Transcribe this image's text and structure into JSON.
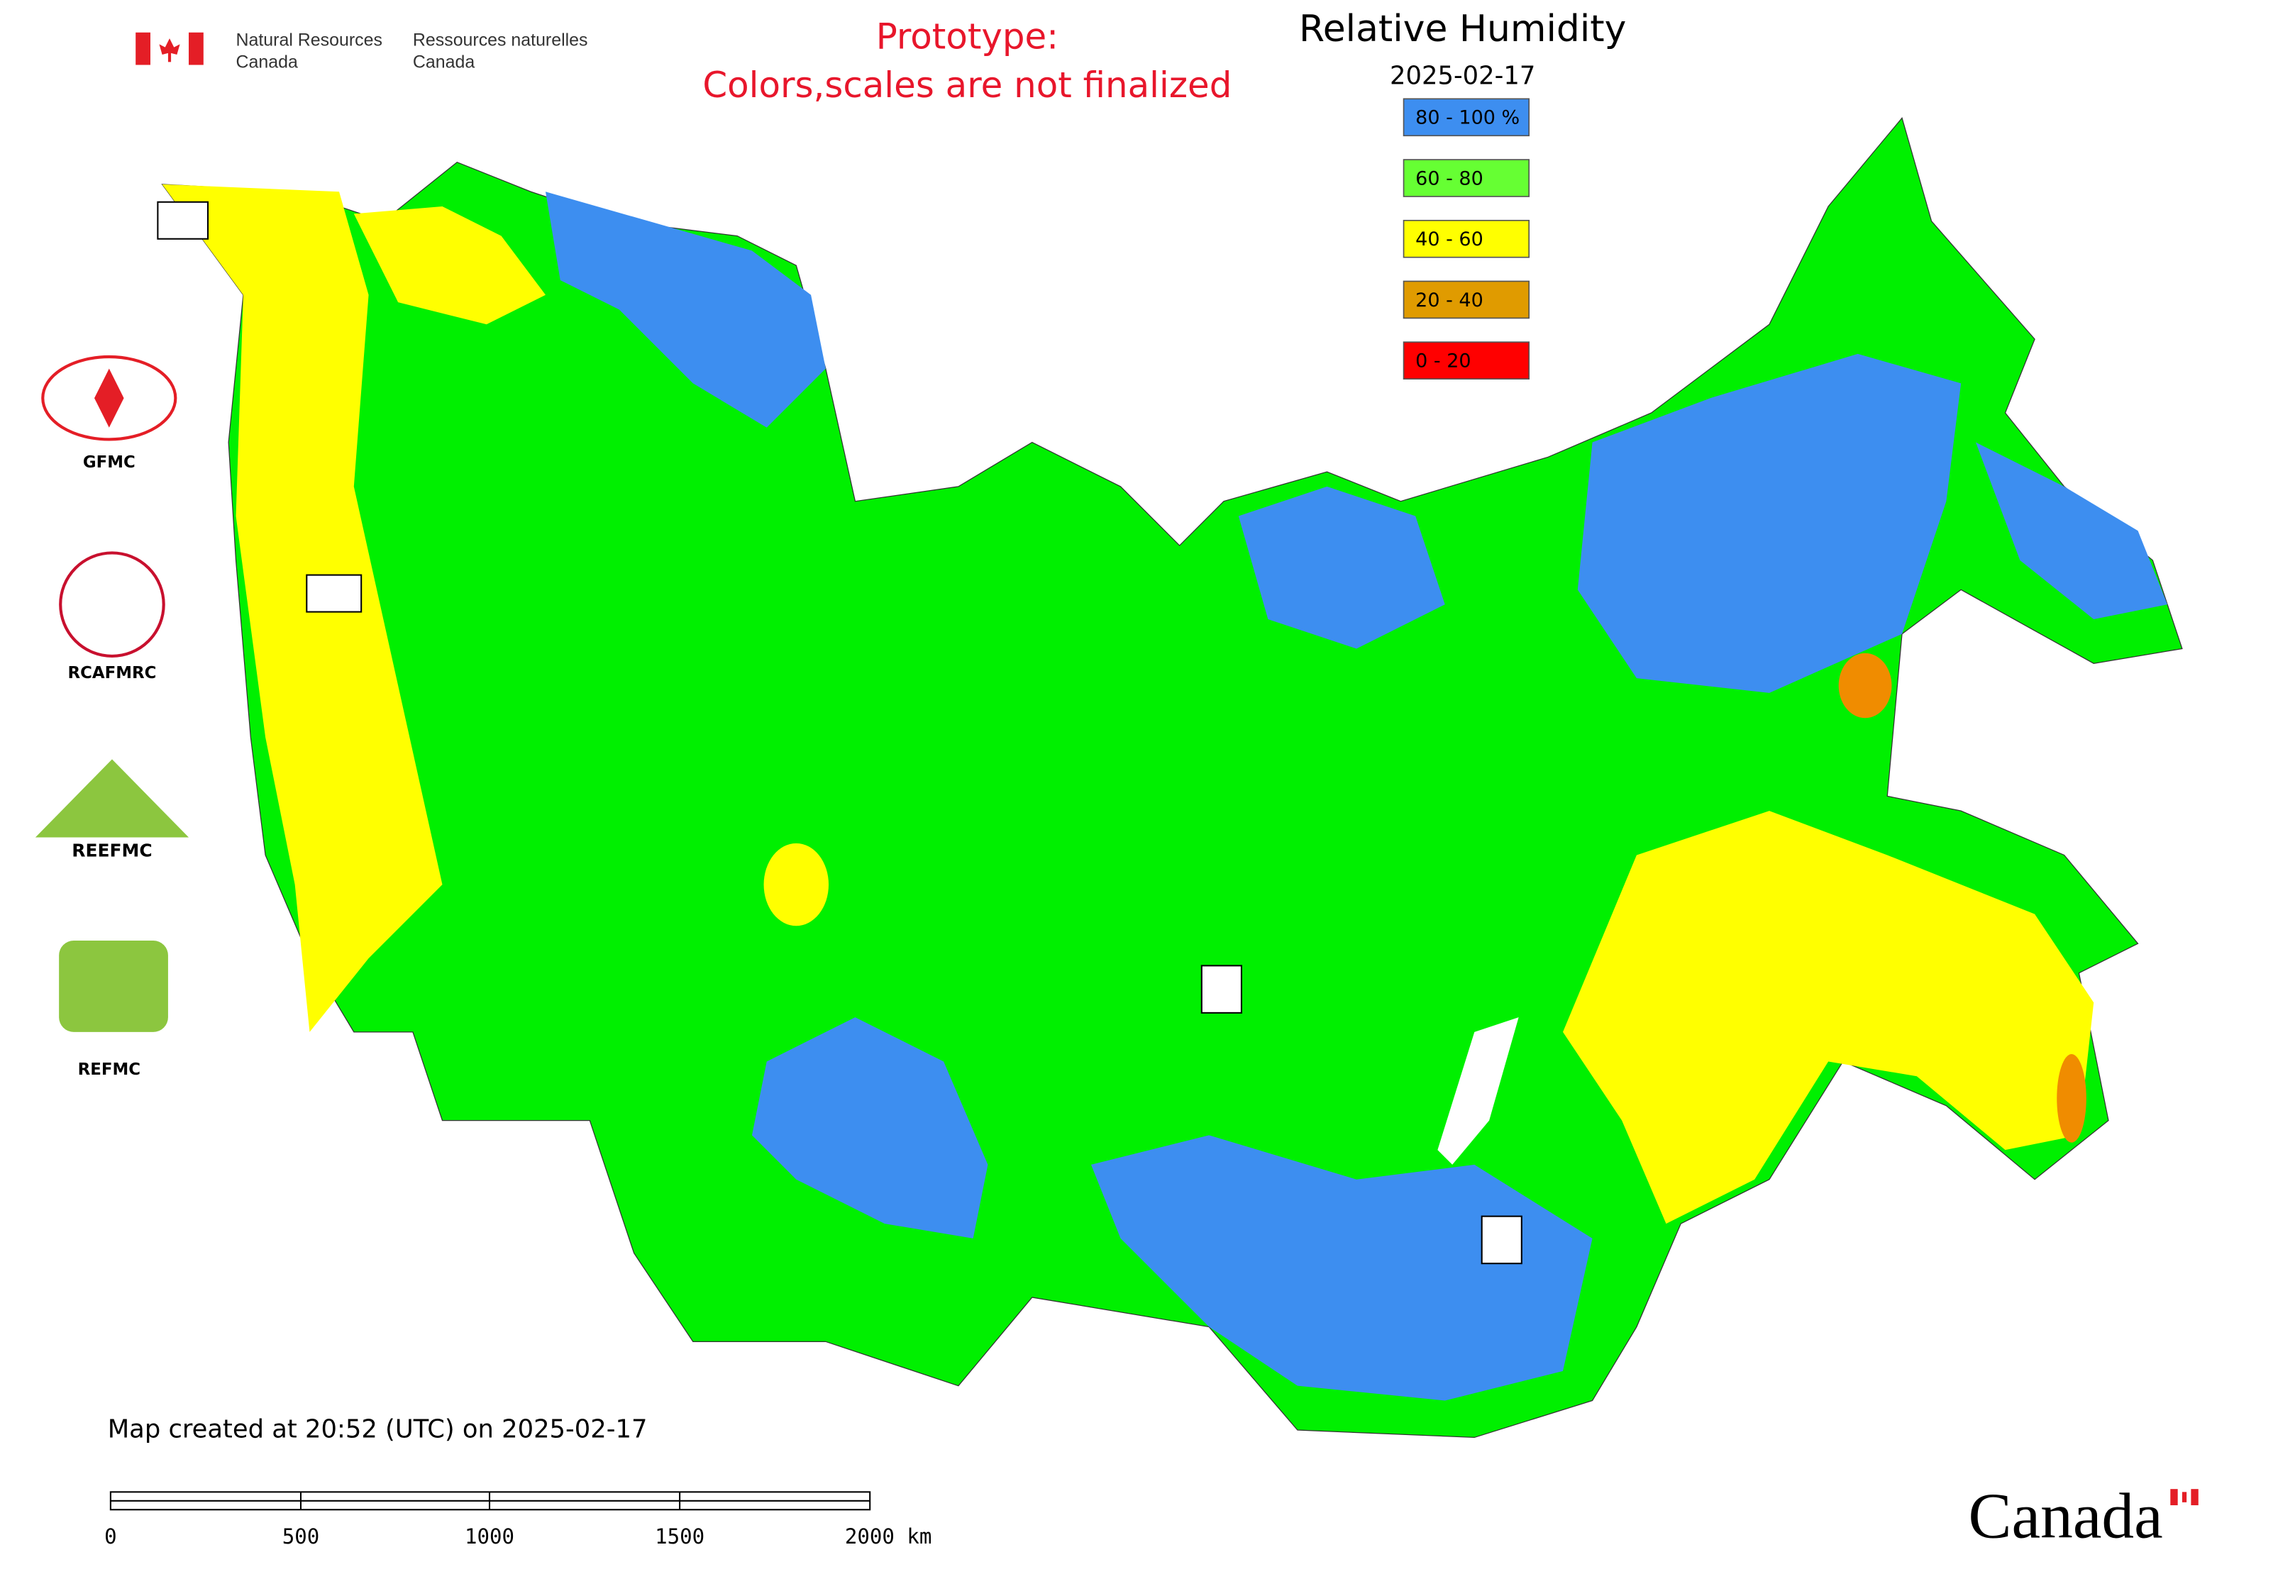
{
  "header": {
    "agency_en": [
      "Natural Resources",
      "Canada"
    ],
    "agency_fr": [
      "Ressources naturelles",
      "Canada"
    ],
    "notice": [
      "Prototype:",
      "Colors,scales are not finalized"
    ]
  },
  "title": "Relative Humidity",
  "date": "2025-02-17",
  "legend": [
    {
      "label": "80 - 100 %",
      "color": "#3d8ef0"
    },
    {
      "label": "60 - 80",
      "color": "#66ff33"
    },
    {
      "label": "40 - 60",
      "color": "#ffff00"
    },
    {
      "label": "20 - 40",
      "color": "#e09b00"
    },
    {
      "label": "0 - 20",
      "color": "#ff0000"
    }
  ],
  "logos": [
    "GFMC",
    "RCAFMRC",
    "REEFMC",
    "REFMC"
  ],
  "footer": "Map created at 20:52 (UTC) on 2025-02-17",
  "scale_bar": [
    "0",
    "500",
    "1000",
    "1500",
    "2000 km"
  ],
  "wordmark": "Canada"
}
